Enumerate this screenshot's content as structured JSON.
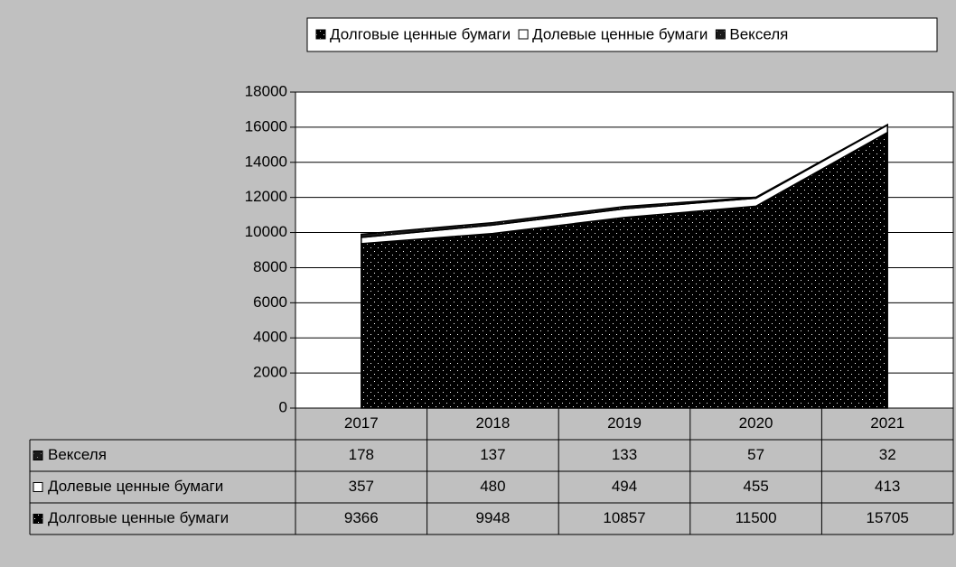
{
  "chart_data": {
    "type": "stacked_area",
    "categories": [
      "2017",
      "2018",
      "2019",
      "2020",
      "2021"
    ],
    "series": [
      {
        "name": "Долговые ценные бумаги",
        "color": "#000000",
        "values": [
          9366,
          9948,
          10857,
          11500,
          15705
        ]
      },
      {
        "name": "Долевые ценные бумаги",
        "color": "#ffffff",
        "values": [
          357,
          480,
          494,
          455,
          413
        ]
      },
      {
        "name": "Векселя",
        "color": "#1a1a1a",
        "values": [
          178,
          137,
          133,
          57,
          32
        ]
      }
    ],
    "ylim": [
      0,
      18000
    ],
    "yticks": [
      0,
      2000,
      4000,
      6000,
      8000,
      10000,
      12000,
      14000,
      16000,
      18000
    ],
    "grid": true,
    "legend": "top"
  }
}
